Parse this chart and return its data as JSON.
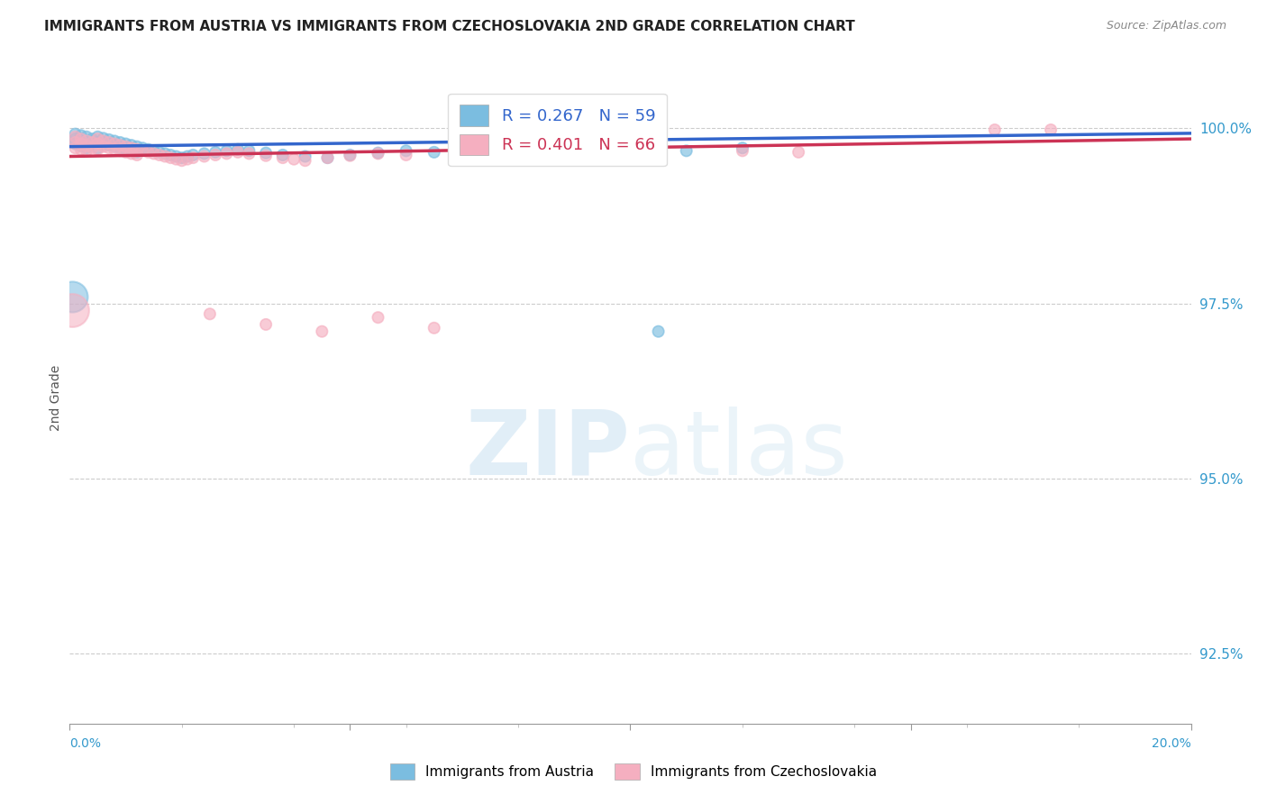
{
  "title": "IMMIGRANTS FROM AUSTRIA VS IMMIGRANTS FROM CZECHOSLOVAKIA 2ND GRADE CORRELATION CHART",
  "source": "Source: ZipAtlas.com",
  "ylabel": "2nd Grade",
  "ytick_labels": [
    "100.0%",
    "97.5%",
    "95.0%",
    "92.5%"
  ],
  "ytick_values": [
    1.0,
    0.975,
    0.95,
    0.925
  ],
  "xmin": 0.0,
  "xmax": 0.2,
  "ymin": 0.915,
  "ymax": 1.008,
  "austria_color": "#7bbde0",
  "czech_color": "#f5afc0",
  "austria_line_color": "#3366cc",
  "czech_line_color": "#cc3355",
  "austria_R": 0.267,
  "austria_N": 59,
  "czech_R": 0.401,
  "czech_N": 66,
  "watermark_color": "#daeef8",
  "austria_x": [
    0.001,
    0.001,
    0.001,
    0.002,
    0.002,
    0.002,
    0.003,
    0.003,
    0.003,
    0.004,
    0.004,
    0.005,
    0.005,
    0.005,
    0.006,
    0.006,
    0.007,
    0.007,
    0.008,
    0.008,
    0.009,
    0.009,
    0.01,
    0.01,
    0.011,
    0.011,
    0.012,
    0.012,
    0.013,
    0.014,
    0.015,
    0.016,
    0.017,
    0.018,
    0.019,
    0.02,
    0.021,
    0.022,
    0.024,
    0.026,
    0.028,
    0.03,
    0.032,
    0.035,
    0.038,
    0.042,
    0.046,
    0.05,
    0.055,
    0.06,
    0.065,
    0.07,
    0.075,
    0.08,
    0.09,
    0.1,
    0.11,
    0.12,
    0.105
  ],
  "austria_y": [
    0.9992,
    0.9985,
    0.9978,
    0.999,
    0.9982,
    0.9975,
    0.9988,
    0.998,
    0.9972,
    0.9985,
    0.9978,
    0.9988,
    0.998,
    0.9972,
    0.9986,
    0.9978,
    0.9984,
    0.9976,
    0.9982,
    0.9974,
    0.998,
    0.9972,
    0.9978,
    0.997,
    0.9976,
    0.9968,
    0.9974,
    0.9966,
    0.9972,
    0.997,
    0.9968,
    0.9966,
    0.9964,
    0.9962,
    0.996,
    0.9958,
    0.996,
    0.9962,
    0.9964,
    0.9966,
    0.9968,
    0.997,
    0.9968,
    0.9965,
    0.9962,
    0.996,
    0.9958,
    0.9962,
    0.9965,
    0.9968,
    0.9966,
    0.997,
    0.9968,
    0.9972,
    0.997,
    0.9975,
    0.9968,
    0.9972,
    0.971
  ],
  "austria_size": [
    80,
    80,
    80,
    80,
    80,
    80,
    80,
    80,
    80,
    80,
    80,
    80,
    80,
    80,
    80,
    80,
    80,
    80,
    80,
    80,
    80,
    80,
    80,
    80,
    80,
    80,
    80,
    80,
    80,
    80,
    80,
    80,
    80,
    80,
    80,
    80,
    80,
    80,
    80,
    80,
    80,
    80,
    80,
    80,
    80,
    80,
    80,
    80,
    80,
    80,
    80,
    80,
    80,
    80,
    80,
    80,
    80,
    80,
    80
  ],
  "austria_big_x": [
    0.0005
  ],
  "austria_big_y": [
    0.976
  ],
  "austria_big_size": [
    600
  ],
  "czech_x": [
    0.001,
    0.001,
    0.001,
    0.002,
    0.002,
    0.002,
    0.003,
    0.003,
    0.003,
    0.004,
    0.004,
    0.005,
    0.005,
    0.005,
    0.006,
    0.006,
    0.007,
    0.007,
    0.008,
    0.008,
    0.009,
    0.009,
    0.01,
    0.01,
    0.011,
    0.011,
    0.012,
    0.012,
    0.013,
    0.014,
    0.015,
    0.016,
    0.017,
    0.018,
    0.019,
    0.02,
    0.021,
    0.022,
    0.024,
    0.026,
    0.028,
    0.03,
    0.032,
    0.035,
    0.038,
    0.04,
    0.042,
    0.046,
    0.05,
    0.055,
    0.06,
    0.07,
    0.075,
    0.08,
    0.09,
    0.095,
    0.1,
    0.12,
    0.13,
    0.175,
    0.025,
    0.035,
    0.045,
    0.055,
    0.065,
    0.165
  ],
  "czech_y": [
    0.9988,
    0.998,
    0.9972,
    0.9985,
    0.9978,
    0.997,
    0.9982,
    0.9975,
    0.9968,
    0.998,
    0.9972,
    0.9985,
    0.9978,
    0.997,
    0.9982,
    0.9974,
    0.998,
    0.9972,
    0.9978,
    0.997,
    0.9976,
    0.9968,
    0.9974,
    0.9966,
    0.9972,
    0.9964,
    0.997,
    0.9962,
    0.9968,
    0.9966,
    0.9964,
    0.9962,
    0.996,
    0.9958,
    0.9956,
    0.9954,
    0.9956,
    0.9958,
    0.996,
    0.9962,
    0.9964,
    0.9966,
    0.9964,
    0.9961,
    0.9958,
    0.9956,
    0.9954,
    0.9958,
    0.9961,
    0.9964,
    0.9962,
    0.9966,
    0.9964,
    0.9968,
    0.9966,
    0.9971,
    0.9964,
    0.9968,
    0.9966,
    0.9998,
    0.9735,
    0.972,
    0.971,
    0.973,
    0.9715,
    0.9998
  ],
  "czech_size": [
    80,
    80,
    80,
    80,
    80,
    80,
    80,
    80,
    80,
    80,
    80,
    80,
    80,
    80,
    80,
    80,
    80,
    80,
    80,
    80,
    80,
    80,
    80,
    80,
    80,
    80,
    80,
    80,
    80,
    80,
    80,
    80,
    80,
    80,
    80,
    80,
    80,
    80,
    80,
    80,
    80,
    80,
    80,
    80,
    80,
    80,
    80,
    80,
    80,
    80,
    80,
    80,
    80,
    80,
    80,
    80,
    80,
    80,
    80,
    80,
    80,
    80,
    80,
    80,
    80,
    80
  ],
  "czech_big_x": [
    0.0005
  ],
  "czech_big_y": [
    0.974
  ],
  "czech_big_size": [
    700
  ]
}
